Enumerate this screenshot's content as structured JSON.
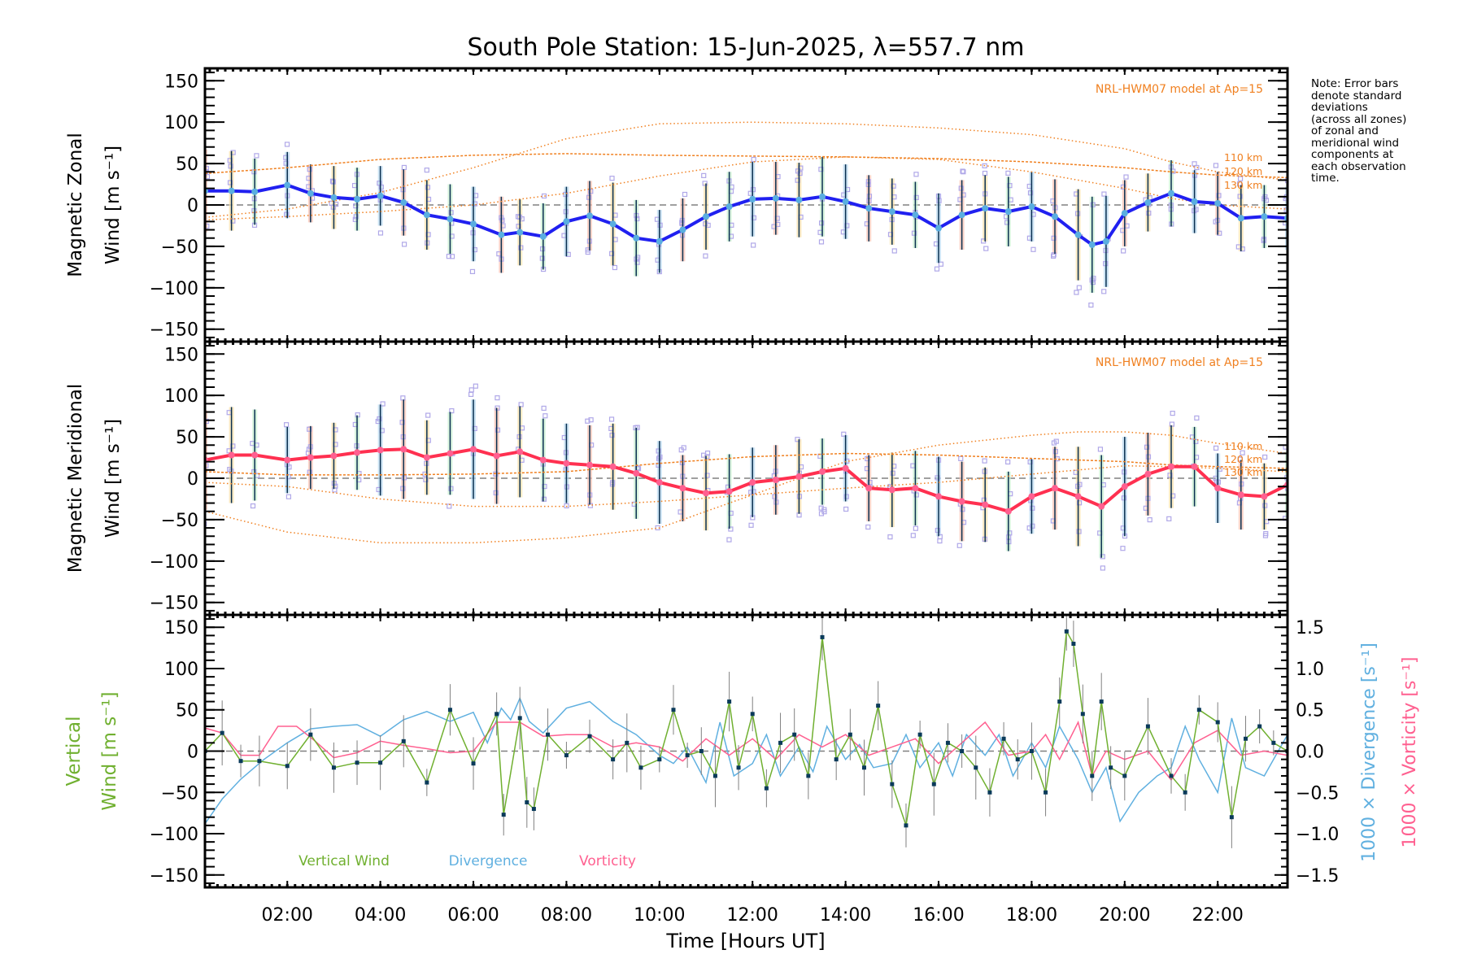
{
  "chart_data": {
    "type": "line",
    "title": "South Pole Station: 15-Jun-2025, λ=557.7 nm",
    "xlabel": "Time [Hours UT]",
    "xlim": [
      0.23,
      23.5
    ],
    "x_ticks": [
      2,
      4,
      6,
      8,
      10,
      12,
      14,
      16,
      18,
      20,
      22
    ],
    "x_tick_labels": [
      "02:00",
      "04:00",
      "06:00",
      "08:00",
      "10:00",
      "12:00",
      "14:00",
      "16:00",
      "18:00",
      "20:00",
      "22:00"
    ],
    "note": "Note: Error bars\ndenote standard\ndeviations\n(across all zones)\nof zonal and\nmeridional wind\ncomponents at\neach observation\ntime.",
    "colors": {
      "zonal_mean": "#2020f0",
      "zonal_marker": "#5aaee0",
      "meridional_mean": "#ff3050",
      "meridional_marker": "#ff6090",
      "model": "#f08020",
      "errorbar": "#0a3050",
      "zone_points": "#b0a8e8",
      "vertical": "#70b030",
      "divergence": "#60b0e0",
      "vorticity": "#ff6090",
      "vertical_marker": "#0a3a5a",
      "zero_line": "#808080"
    },
    "panels": [
      {
        "id": "zonal",
        "ylabel_line1": "Magnetic Zonal",
        "ylabel_line2": "Wind [m s",
        "ylabel_sup": "-1",
        "ylabel_close": "]",
        "ylim": [
          -165,
          165
        ],
        "y_ticks": [
          -150,
          -100,
          -50,
          0,
          50,
          100,
          150
        ],
        "y_tick_labels": [
          "−150",
          "−100",
          "−50",
          "0",
          "50",
          "100",
          "150"
        ],
        "model_label": "NRL-HWM07 model at Ap=15",
        "model_curves": [
          {
            "name": "110 km",
            "x": [
              0.23,
              2,
              4,
              6,
              8,
              10,
              12,
              14,
              16,
              18,
              20,
              21,
              22,
              23.5
            ],
            "y": [
              -15,
              -5,
              15,
              45,
              80,
              98,
              100,
              98,
              93,
              85,
              68,
              52,
              40,
              30
            ]
          },
          {
            "name": "120 km",
            "x": [
              0.23,
              2,
              4,
              6,
              8,
              10,
              12,
              14,
              16,
              18,
              20,
              21,
              22,
              23.5
            ],
            "y": [
              38,
              45,
              55,
              60,
              62,
              60,
              59,
              58,
              56,
              52,
              45,
              40,
              36,
              33
            ]
          },
          {
            "name": "130 km",
            "x": [
              0.23,
              2,
              4,
              6,
              8,
              10,
              12,
              14,
              16,
              18,
              20,
              21,
              22,
              23.5
            ],
            "y": [
              -18,
              -14,
              -8,
              0,
              14,
              35,
              52,
              58,
              55,
              40,
              20,
              8,
              0,
              -5
            ]
          }
        ],
        "mean_series": {
          "name": "Zonal mean",
          "x": [
            0.23,
            0.8,
            1.3,
            2.0,
            2.5,
            3.0,
            3.5,
            4.0,
            4.5,
            5.0,
            5.5,
            6.0,
            6.6,
            7.0,
            7.5,
            8.0,
            8.5,
            9.0,
            9.5,
            10.0,
            10.5,
            11.0,
            11.5,
            12.0,
            12.5,
            13.0,
            13.5,
            14.0,
            14.5,
            15.0,
            15.5,
            16.0,
            16.5,
            17.0,
            17.5,
            18.0,
            18.5,
            19.0,
            19.3,
            19.6,
            20.0,
            20.5,
            21.0,
            21.5,
            22.0,
            22.5,
            23.0,
            23.5
          ],
          "y": [
            17,
            17,
            16,
            24,
            14,
            9,
            7,
            11,
            3,
            -12,
            -17,
            -23,
            -36,
            -33,
            -38,
            -20,
            -13,
            -23,
            -40,
            -44,
            -30,
            -14,
            -2,
            7,
            8,
            6,
            10,
            4,
            -4,
            -8,
            -12,
            -28,
            -12,
            -4,
            -8,
            -2,
            -14,
            -36,
            -48,
            -44,
            -10,
            3,
            14,
            4,
            2,
            -16,
            -14,
            -16
          ]
        },
        "error_half_widths": [
          50,
          48,
          40,
          40,
          35,
          38,
          38,
          36,
          40,
          42,
          42,
          45,
          46,
          40,
          40,
          42,
          42,
          50,
          46,
          38,
          38,
          40,
          42,
          45,
          44,
          45,
          48,
          45,
          40,
          40,
          40,
          42,
          42,
          40,
          42,
          42,
          45,
          55,
          58,
          55,
          40,
          35,
          40,
          38,
          38,
          40,
          38,
          38
        ]
      },
      {
        "id": "meridional",
        "ylabel_line1": "Magnetic Meridional",
        "ylabel_line2": "Wind [m s",
        "ylabel_sup": "-1",
        "ylabel_close": "]",
        "ylim": [
          -165,
          165
        ],
        "y_ticks": [
          -150,
          -100,
          -50,
          0,
          50,
          100,
          150
        ],
        "y_tick_labels": [
          "−150",
          "−100",
          "−50",
          "0",
          "50",
          "100",
          "150"
        ],
        "model_label": "NRL-HWM07 model at Ap=15",
        "model_curves": [
          {
            "name": "110 km",
            "x": [
              0.23,
              2,
              4,
              6,
              8,
              10,
              12,
              14,
              16,
              18,
              19,
              20,
              21,
              22,
              23.5
            ],
            "y": [
              -40,
              -65,
              -78,
              -78,
              -72,
              -60,
              -20,
              20,
              40,
              52,
              56,
              56,
              52,
              42,
              30
            ]
          },
          {
            "name": "120 km",
            "x": [
              0.23,
              2,
              4,
              6,
              8,
              10,
              12,
              14,
              16,
              18,
              20,
              21,
              22,
              23.5
            ],
            "y": [
              8,
              4,
              4,
              5,
              8,
              18,
              26,
              30,
              28,
              24,
              20,
              16,
              14,
              12
            ]
          },
          {
            "name": "130 km",
            "x": [
              0.23,
              2,
              4,
              6,
              8,
              10,
              12,
              14,
              16,
              18,
              20,
              21,
              22,
              23.5
            ],
            "y": [
              -5,
              -10,
              -25,
              -34,
              -34,
              -28,
              -20,
              -12,
              -5,
              5,
              15,
              14,
              12,
              8
            ]
          }
        ],
        "mean_series": {
          "name": "Meridional mean",
          "x": [
            0.23,
            0.8,
            1.3,
            2.0,
            2.5,
            3.0,
            3.5,
            4.0,
            4.5,
            5.0,
            5.5,
            6.0,
            6.5,
            7.0,
            7.5,
            8.0,
            8.5,
            9.0,
            9.5,
            10.0,
            10.5,
            11.0,
            11.5,
            12.0,
            12.5,
            13.0,
            13.5,
            14.0,
            14.5,
            15.0,
            15.5,
            16.0,
            16.5,
            17.0,
            17.5,
            18.0,
            18.5,
            19.0,
            19.5,
            20.0,
            20.5,
            21.0,
            21.5,
            22.0,
            22.5,
            23.0,
            23.5
          ],
          "y": [
            22,
            28,
            28,
            22,
            25,
            27,
            31,
            34,
            35,
            25,
            30,
            35,
            27,
            32,
            22,
            18,
            16,
            14,
            6,
            -5,
            -12,
            -18,
            -16,
            -5,
            -2,
            2,
            8,
            12,
            -12,
            -14,
            -12,
            -22,
            -28,
            -32,
            -40,
            -22,
            -12,
            -22,
            -34,
            -10,
            5,
            14,
            14,
            -12,
            -20,
            -22,
            -8
          ]
        },
        "error_half_widths": [
          60,
          58,
          55,
          40,
          38,
          40,
          45,
          55,
          60,
          45,
          50,
          60,
          58,
          55,
          50,
          48,
          48,
          52,
          55,
          50,
          40,
          45,
          45,
          42,
          42,
          45,
          40,
          40,
          40,
          45,
          45,
          48,
          48,
          45,
          48,
          45,
          50,
          60,
          62,
          60,
          50,
          50,
          48,
          42,
          42,
          40,
          40
        ]
      },
      {
        "id": "vertical",
        "ylabel_line1": "Vertical",
        "ylabel_line2": "Wind [m s",
        "ylabel_sup": "-1",
        "ylabel_close": "]",
        "ylim": [
          -165,
          165
        ],
        "y_ticks": [
          -150,
          -100,
          -50,
          0,
          50,
          100,
          150
        ],
        "y_tick_labels": [
          "−150",
          "−100",
          "−50",
          "0",
          "50",
          "100",
          "150"
        ],
        "y2lim": [
          -1.65,
          1.65
        ],
        "y2_ticks": [
          -1.5,
          -1.0,
          -0.5,
          0.0,
          0.5,
          1.0,
          1.5
        ],
        "y2_tick_labels": [
          "−1.5",
          "−1.0",
          "−0.5",
          "0.0",
          "0.5",
          "1.0",
          "1.5"
        ],
        "y2_label_divergence": "1000 × Divergence [s",
        "y2_label_vorticity": "1000 × Vorticity [s",
        "legend": [
          "Vertical Wind",
          "Divergence",
          "Vorticity"
        ],
        "legend_placement": "bottom-left",
        "series": [
          {
            "name": "Vertical Wind",
            "units": "m s-1",
            "x": [
              0.23,
              0.6,
              1.0,
              1.4,
              2.0,
              2.5,
              3.0,
              3.5,
              4.0,
              4.5,
              5.0,
              5.5,
              6.0,
              6.5,
              6.65,
              7.0,
              7.15,
              7.3,
              7.6,
              8.0,
              8.5,
              9.0,
              9.3,
              9.6,
              10.0,
              10.3,
              10.6,
              10.9,
              11.2,
              11.5,
              11.7,
              12.0,
              12.3,
              12.6,
              12.9,
              13.2,
              13.5,
              13.8,
              14.1,
              14.4,
              14.7,
              15.0,
              15.3,
              15.6,
              15.9,
              16.2,
              16.5,
              16.8,
              17.1,
              17.4,
              17.7,
              18.0,
              18.3,
              18.6,
              18.75,
              18.9,
              19.1,
              19.3,
              19.5,
              19.7,
              20.0,
              20.5,
              21.0,
              21.3,
              21.6,
              22.0,
              22.3,
              22.6,
              22.9,
              23.2,
              23.5
            ],
            "y": [
              0,
              22,
              -12,
              -12,
              -18,
              20,
              -20,
              -14,
              -14,
              12,
              -38,
              50,
              -15,
              45,
              -77,
              40,
              -62,
              -70,
              20,
              -5,
              18,
              -10,
              10,
              -20,
              -10,
              50,
              -5,
              0,
              -30,
              60,
              -20,
              45,
              -45,
              10,
              20,
              -30,
              138,
              -10,
              20,
              -20,
              55,
              -40,
              -90,
              20,
              -40,
              10,
              0,
              -20,
              -50,
              15,
              -10,
              0,
              -50,
              60,
              145,
              130,
              45,
              -30,
              60,
              -20,
              -30,
              30,
              -30,
              -50,
              50,
              35,
              -80,
              15,
              30,
              10,
              0
            ]
          },
          {
            "name": "Divergence",
            "units": "1000 x s-1",
            "x": [
              0.23,
              0.6,
              1.0,
              1.5,
              2.0,
              2.5,
              3.0,
              3.5,
              4.0,
              4.5,
              5.0,
              5.5,
              6.0,
              6.3,
              6.6,
              6.8,
              7.0,
              7.2,
              7.5,
              8.0,
              8.5,
              9.0,
              9.5,
              10.0,
              10.3,
              10.6,
              11.0,
              11.3,
              11.6,
              12.0,
              12.3,
              12.6,
              13.0,
              13.3,
              13.6,
              14.0,
              14.3,
              14.6,
              15.0,
              15.3,
              15.6,
              16.0,
              16.3,
              16.6,
              17.0,
              17.3,
              17.6,
              18.0,
              18.3,
              18.6,
              19.0,
              19.3,
              19.6,
              19.9,
              20.3,
              20.7,
              21.0,
              21.3,
              21.6,
              22.0,
              22.3,
              22.6,
              23.0,
              23.5
            ],
            "y": [
              -0.88,
              -0.58,
              -0.34,
              -0.1,
              0.1,
              0.27,
              0.3,
              0.32,
              0.18,
              0.38,
              0.48,
              0.36,
              0.47,
              0.1,
              0.52,
              0.38,
              0.64,
              0.36,
              0.22,
              0.52,
              0.6,
              0.36,
              0.2,
              -0.05,
              -0.15,
              0.05,
              -0.38,
              0.35,
              -0.3,
              -0.15,
              0.2,
              -0.3,
              0.05,
              -0.25,
              0.3,
              -0.1,
              0.08,
              -0.2,
              -0.15,
              0.2,
              -0.2,
              0.1,
              -0.3,
              0.2,
              -0.05,
              0.2,
              -0.3,
              0.1,
              -0.2,
              0.3,
              -0.1,
              -0.5,
              -0.2,
              -0.85,
              -0.5,
              -0.3,
              -0.2,
              0.3,
              -0.1,
              -0.5,
              0.4,
              -0.2,
              -0.3,
              0.2
            ]
          },
          {
            "name": "Vorticity",
            "units": "1000 x s-1",
            "x": [
              0.23,
              0.6,
              1.0,
              1.4,
              1.8,
              2.2,
              2.6,
              3.0,
              3.5,
              4.0,
              4.5,
              5.0,
              5.5,
              6.0,
              6.5,
              7.0,
              7.5,
              8.0,
              8.5,
              9.0,
              9.5,
              10.0,
              10.5,
              11.0,
              11.5,
              12.0,
              12.5,
              13.0,
              13.5,
              14.0,
              14.5,
              15.0,
              15.5,
              16.0,
              16.5,
              17.0,
              17.5,
              18.0,
              18.3,
              18.6,
              19.0,
              19.3,
              19.6,
              20.0,
              20.5,
              21.0,
              21.5,
              22.0,
              22.5,
              23.0,
              23.5
            ],
            "y": [
              0.28,
              0.22,
              -0.05,
              -0.05,
              0.3,
              0.3,
              0.12,
              -0.08,
              -0.02,
              0.12,
              0.07,
              0.03,
              -0.02,
              0.0,
              0.35,
              0.35,
              0.18,
              0.2,
              0.2,
              0.05,
              0.1,
              0.05,
              -0.12,
              0.15,
              -0.05,
              0.15,
              -0.1,
              0.2,
              0.05,
              0.2,
              -0.05,
              0.05,
              0.15,
              -0.15,
              0.1,
              0.35,
              -0.05,
              0.0,
              0.2,
              -0.1,
              0.35,
              -0.3,
              0.0,
              -0.1,
              0.0,
              -0.35,
              0.1,
              0.25,
              -0.05,
              0.0,
              -0.05
            ]
          }
        ]
      }
    ]
  }
}
